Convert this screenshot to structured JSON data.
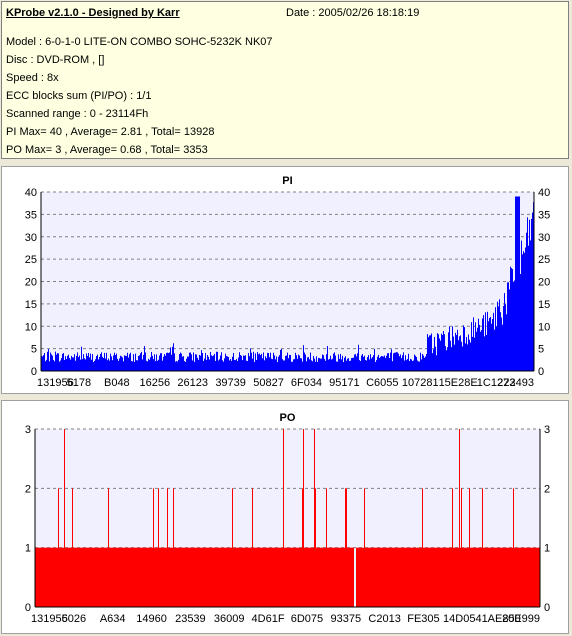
{
  "info": {
    "title": "KProbe v2.1.0 - Designed by Karr",
    "date": "Date : 2005/02/26 18:18:19",
    "model": "Model : 6-0-1-0 LITE-ON COMBO SOHC-5232K NK07",
    "disc": "Disc : DVD-ROM ,  []",
    "speed": "Speed : 8x",
    "ecc": "ECC blocks sum (PI/PO) : 1/1",
    "range": "Scanned range : 0 - 23114Fh",
    "pi_stats": "PI Max= 40 , Average= 2.81 , Total= 13928",
    "po_stats": "PO Max= 3 , Average= 0.68 , Total= 3353"
  },
  "chart_data": [
    {
      "type": "bar",
      "title": "PI",
      "ylim": [
        0,
        40
      ],
      "yticks": [
        "0",
        "5",
        "10",
        "15",
        "20",
        "25",
        "30",
        "35",
        "40"
      ],
      "x_tick_labels": [
        "131956",
        "5178",
        "B048",
        "16256",
        "26123",
        "39739",
        "50827",
        "6F034",
        "95171",
        "C6055",
        "107281",
        "15E28E",
        "1C1273",
        "222493"
      ],
      "grid": true,
      "color": "#0000ff",
      "summary": {
        "max": 40,
        "average": 2.81,
        "total": 13928
      }
    },
    {
      "type": "bar",
      "title": "PO",
      "ylim": [
        0,
        3
      ],
      "yticks": [
        "0",
        "1",
        "2",
        "3"
      ],
      "x_tick_labels": [
        "131956",
        "5026",
        "A634",
        "14960",
        "23539",
        "36009",
        "4D61F",
        "6D075",
        "93375",
        "C2013",
        "FE305",
        "14D054",
        "1AE850",
        "20E999"
      ],
      "grid": true,
      "color": "#ff0000",
      "summary": {
        "max": 3,
        "average": 0.68,
        "total": 3353
      }
    }
  ]
}
